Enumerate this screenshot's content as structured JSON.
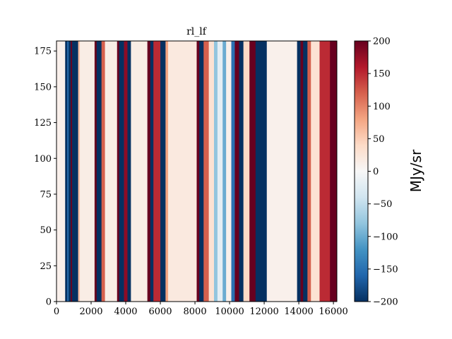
{
  "chart_data": {
    "type": "heatmap",
    "title": "rl_lf",
    "xlabel": "",
    "ylabel": "",
    "xlim": [
      0,
      16200
    ],
    "ylim": [
      0,
      182
    ],
    "x_ticks": [
      0,
      2000,
      4000,
      6000,
      8000,
      10000,
      12000,
      14000,
      16000
    ],
    "x_tick_labels": [
      "0",
      "2000",
      "4000",
      "6000",
      "8000",
      "10000",
      "12000",
      "14000",
      "16000"
    ],
    "y_ticks": [
      0,
      25,
      50,
      75,
      100,
      125,
      150,
      175
    ],
    "y_tick_labels": [
      "0",
      "25",
      "50",
      "75",
      "100",
      "125",
      "150",
      "175"
    ],
    "colormap": "RdBu_r",
    "colorbar": {
      "label": "MJy/sr",
      "vmin": -200,
      "vmax": 200,
      "ticks": [
        -200,
        -150,
        -100,
        -50,
        0,
        50,
        100,
        150,
        200
      ],
      "tick_labels": [
        "−200",
        "−150",
        "−100",
        "−50",
        "0",
        "50",
        "100",
        "150",
        "200"
      ]
    },
    "grid": false,
    "column_bands": [
      {
        "x": [
          0,
          500
        ],
        "value": 10
      },
      {
        "x": [
          500,
          620
        ],
        "value": -200
      },
      {
        "x": [
          620,
          700
        ],
        "value": -150
      },
      {
        "x": [
          700,
          820
        ],
        "value": -200
      },
      {
        "x": [
          820,
          900
        ],
        "value": 200
      },
      {
        "x": [
          900,
          1250
        ],
        "value": -200
      },
      {
        "x": [
          1250,
          1350
        ],
        "value": 60
      },
      {
        "x": [
          1350,
          2200
        ],
        "value": 15
      },
      {
        "x": [
          2200,
          2320
        ],
        "value": 200
      },
      {
        "x": [
          2320,
          2600
        ],
        "value": -200
      },
      {
        "x": [
          2600,
          2800
        ],
        "value": 120
      },
      {
        "x": [
          2800,
          3500
        ],
        "value": 15
      },
      {
        "x": [
          3500,
          3620
        ],
        "value": 200
      },
      {
        "x": [
          3620,
          3900
        ],
        "value": -200
      },
      {
        "x": [
          3900,
          4100
        ],
        "value": 180
      },
      {
        "x": [
          4100,
          4300
        ],
        "value": -200
      },
      {
        "x": [
          4300,
          5250
        ],
        "value": 15
      },
      {
        "x": [
          5250,
          5420
        ],
        "value": 200
      },
      {
        "x": [
          5420,
          5600
        ],
        "value": -200
      },
      {
        "x": [
          5600,
          6000
        ],
        "value": 150
      },
      {
        "x": [
          6000,
          6300
        ],
        "value": -200
      },
      {
        "x": [
          6300,
          6450
        ],
        "value": 80
      },
      {
        "x": [
          6450,
          8100
        ],
        "value": 20
      },
      {
        "x": [
          8100,
          8250
        ],
        "value": 200
      },
      {
        "x": [
          8250,
          8500
        ],
        "value": -200
      },
      {
        "x": [
          8500,
          8800
        ],
        "value": 120
      },
      {
        "x": [
          8800,
          9100
        ],
        "value": 30
      },
      {
        "x": [
          9100,
          9300
        ],
        "value": -80
      },
      {
        "x": [
          9300,
          9600
        ],
        "value": -20
      },
      {
        "x": [
          9600,
          9800
        ],
        "value": -100
      },
      {
        "x": [
          9800,
          10100
        ],
        "value": 10
      },
      {
        "x": [
          10100,
          10300
        ],
        "value": -150
      },
      {
        "x": [
          10300,
          10550
        ],
        "value": 200
      },
      {
        "x": [
          10550,
          10800
        ],
        "value": -200
      },
      {
        "x": [
          10800,
          11150
        ],
        "value": 40
      },
      {
        "x": [
          11150,
          11500
        ],
        "value": 200
      },
      {
        "x": [
          11500,
          12150
        ],
        "value": -200
      },
      {
        "x": [
          12150,
          13900
        ],
        "value": 10
      },
      {
        "x": [
          13900,
          14100
        ],
        "value": -200
      },
      {
        "x": [
          14100,
          14250
        ],
        "value": 200
      },
      {
        "x": [
          14250,
          14500
        ],
        "value": -200
      },
      {
        "x": [
          14500,
          14700
        ],
        "value": 120
      },
      {
        "x": [
          14700,
          15200
        ],
        "value": 30
      },
      {
        "x": [
          15200,
          15800
        ],
        "value": 150
      },
      {
        "x": [
          15800,
          16200
        ],
        "value": 200
      }
    ]
  }
}
